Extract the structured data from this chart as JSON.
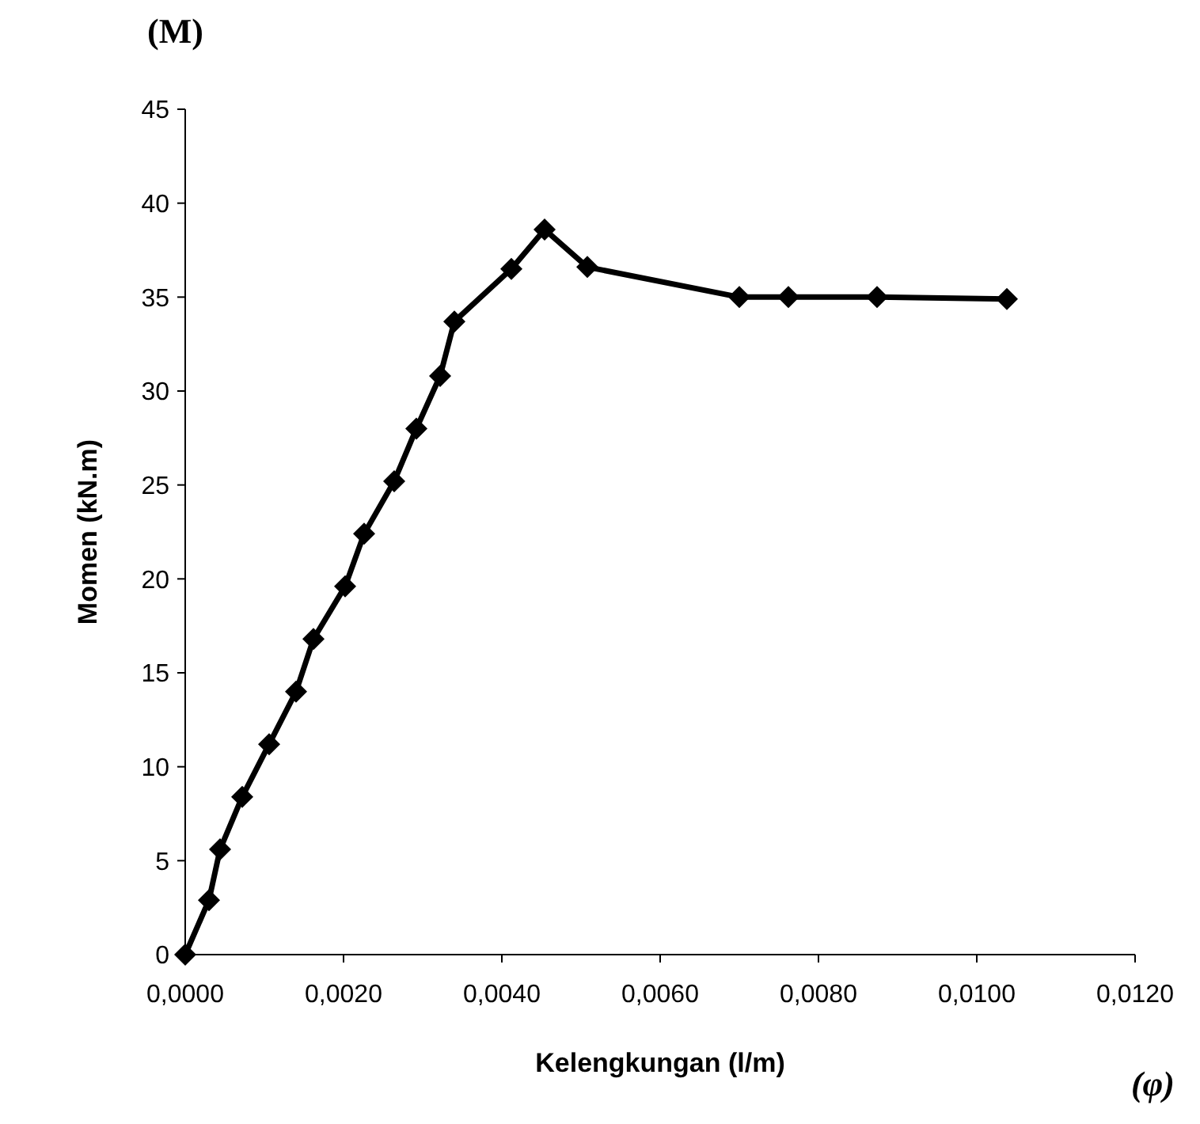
{
  "chart_data": {
    "type": "line",
    "xlabel": "Kelengkungan (l/m)",
    "ylabel": "Momen (kN.m)",
    "annotations": [
      "(M)",
      "(φ)"
    ],
    "x": [
      0,
      0.0003,
      0.00044,
      0.00072,
      0.00106,
      0.0014,
      0.00162,
      0.00202,
      0.00226,
      0.00264,
      0.00292,
      0.00322,
      0.0034,
      0.00412,
      0.00454,
      0.00508,
      0.007,
      0.00762,
      0.00874,
      0.01038
    ],
    "series": [
      {
        "color": "#000000",
        "values": [
          0,
          2.9,
          5.6,
          8.4,
          11.2,
          14.0,
          16.8,
          19.6,
          22.4,
          25.2,
          28.0,
          30.8,
          33.7,
          36.5,
          38.6,
          36.6,
          35.0,
          35.0,
          35.0,
          34.9
        ]
      }
    ],
    "xlim": [
      0,
      0.012
    ],
    "ylim": [
      0,
      45
    ],
    "xticks": [
      {
        "value": 0,
        "label": "0,0000"
      },
      {
        "value": 0.002,
        "label": "0,0020"
      },
      {
        "value": 0.004,
        "label": "0,0040"
      },
      {
        "value": 0.006,
        "label": "0,0060"
      },
      {
        "value": 0.008,
        "label": "0,0080"
      },
      {
        "value": 0.01,
        "label": "0,0100"
      },
      {
        "value": 0.012,
        "label": "0,0120"
      }
    ],
    "yticks": [
      0,
      5,
      10,
      15,
      20,
      25,
      30,
      35,
      40,
      45
    ],
    "marker": "diamond",
    "line_style": "solid",
    "grid": false
  }
}
